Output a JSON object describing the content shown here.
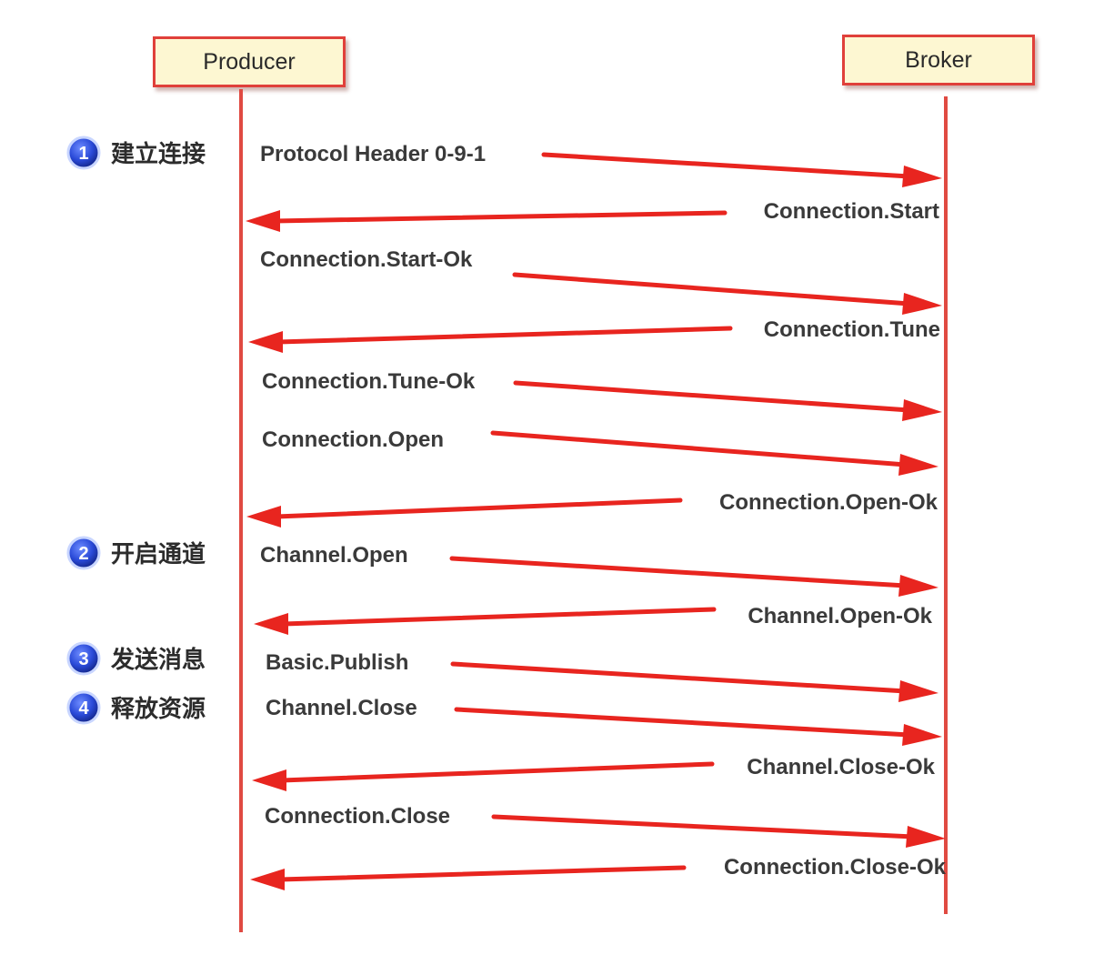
{
  "actors": {
    "producer": "Producer",
    "broker": "Broker"
  },
  "phases": [
    {
      "number": "1",
      "label": "建立连接"
    },
    {
      "number": "2",
      "label": "开启通道"
    },
    {
      "number": "3",
      "label": "发送消息"
    },
    {
      "number": "4",
      "label": "释放资源"
    }
  ],
  "messages": [
    {
      "label": "Protocol Header 0-9-1",
      "direction": "to-broker"
    },
    {
      "label": "Connection.Start",
      "direction": "to-producer"
    },
    {
      "label": "Connection.Start-Ok",
      "direction": "to-broker"
    },
    {
      "label": "Connection.Tune",
      "direction": "to-producer"
    },
    {
      "label": "Connection.Tune-Ok",
      "direction": "to-broker"
    },
    {
      "label": "Connection.Open",
      "direction": "to-broker"
    },
    {
      "label": "Connection.Open-Ok",
      "direction": "to-producer"
    },
    {
      "label": "Channel.Open",
      "direction": "to-broker"
    },
    {
      "label": "Channel.Open-Ok",
      "direction": "to-producer"
    },
    {
      "label": "Basic.Publish",
      "direction": "to-broker"
    },
    {
      "label": "Channel.Close",
      "direction": "to-broker"
    },
    {
      "label": "Channel.Close-Ok",
      "direction": "to-producer"
    },
    {
      "label": "Connection.Close",
      "direction": "to-broker"
    },
    {
      "label": "Connection.Close-Ok",
      "direction": "to-producer"
    }
  ],
  "colors": {
    "arrow": "#e8251f",
    "lifeline": "#e04a42",
    "badge": "#2a4ad8",
    "actor_fill": "#fdf7d2",
    "actor_border": "#e0403a"
  }
}
